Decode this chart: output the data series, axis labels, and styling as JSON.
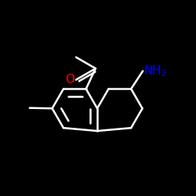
{
  "background_color": "#000000",
  "bond_color": "#ffffff",
  "oxygen_color": "#ff0000",
  "nitrogen_color": "#0000ff",
  "bond_width": 1.8,
  "font_size": 11,
  "BL": 0.115
}
